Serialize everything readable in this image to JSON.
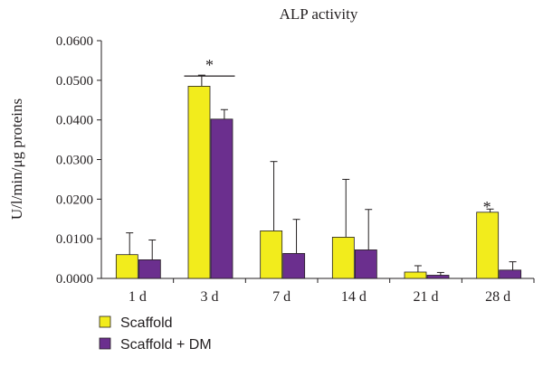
{
  "chart_data": {
    "type": "bar",
    "title": "ALP activity",
    "ylabel": "U/l/min/μg proteins",
    "xlabel": "",
    "categories": [
      "1 d",
      "3 d",
      "7 d",
      "14 d",
      "21 d",
      "28 d"
    ],
    "ylim": [
      0,
      0.06
    ],
    "yticks": [
      "0.0000",
      "0.0100",
      "0.0200",
      "0.0300",
      "0.0400",
      "0.0500",
      "0.0600"
    ],
    "series": [
      {
        "name": "Scaffold",
        "color": "#f2ec1c",
        "values": [
          0.006,
          0.0485,
          0.012,
          0.0104,
          0.0016,
          0.0167
        ],
        "errors": [
          0.0055,
          0.0028,
          0.0175,
          0.0146,
          0.0016,
          0.0008
        ]
      },
      {
        "name": "Scaffold + DM",
        "color": "#6b2f8e",
        "values": [
          0.0047,
          0.0402,
          0.0063,
          0.0072,
          0.0008,
          0.0021
        ],
        "errors": [
          0.005,
          0.0024,
          0.0086,
          0.0102,
          0.0007,
          0.0021
        ]
      }
    ],
    "annotations": [
      {
        "text": "*",
        "category": "3 d",
        "bracket": true,
        "y": 0.0545
      },
      {
        "text": "*",
        "category": "28 d",
        "bracket": false,
        "y": 0.0187
      }
    ],
    "legend_position": "bottom-left",
    "grid": false
  }
}
